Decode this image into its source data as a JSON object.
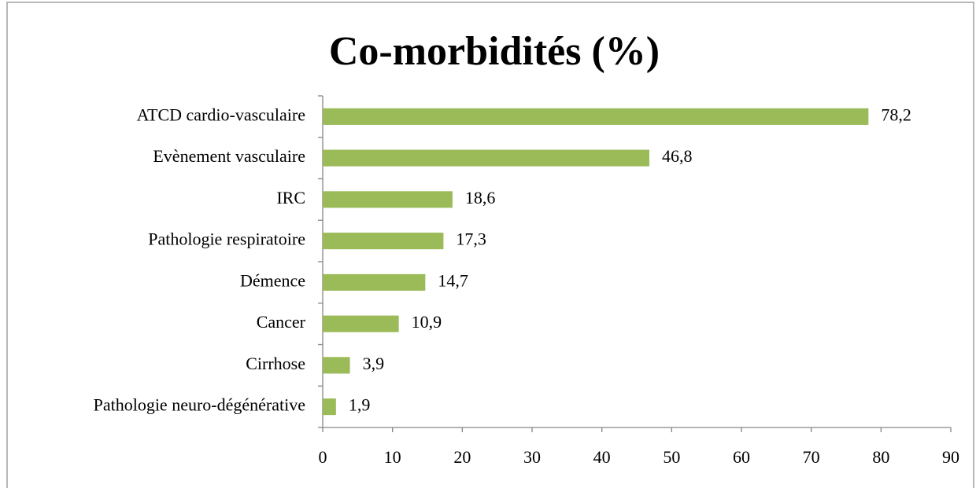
{
  "chart_data": {
    "type": "barh",
    "title": "Co-morbidités (%)",
    "categories": [
      "ATCD cardio-vasculaire",
      "Evènement vasculaire",
      "IRC",
      "Pathologie respiratoire",
      "Démence",
      "Cancer",
      "Cirrhose",
      "Pathologie neuro-dégénérative"
    ],
    "values": [
      78.2,
      46.8,
      18.6,
      17.3,
      14.7,
      10.9,
      3.9,
      1.9
    ],
    "value_labels": [
      "78,2",
      "46,8",
      "18,6",
      "17,3",
      "14,7",
      "10,9",
      "3,9",
      "1,9"
    ],
    "color": "#9bbb59",
    "xlim": [
      0,
      90
    ],
    "xticks": [
      0,
      10,
      20,
      30,
      40,
      50,
      60,
      70,
      80,
      90
    ],
    "grid": false
  }
}
